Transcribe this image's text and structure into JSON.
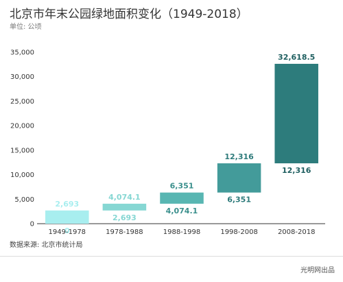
{
  "header": {
    "title": "北京市年末公园绿地面积变化（1949-2018）",
    "unit": "单位: 公顷"
  },
  "footer": {
    "source": "数据来源: 北京市统计局",
    "credit": "光明网出品"
  },
  "colors": {
    "bars": [
      "#a8eeef",
      "#86d7d3",
      "#58b6b2",
      "#439b9a",
      "#2d7c7c"
    ],
    "labels": [
      "#a8eeef",
      "#86d7d3",
      "#3a8f8c",
      "#2d7a7a",
      "#1f5f60"
    ],
    "axis": "#333333",
    "grid": "#cccccc"
  },
  "chart_data": {
    "type": "bar",
    "subtype": "floating-range",
    "title": "北京市年末公园绿地面积变化（1949-2018）",
    "ylabel": "单位: 公顷",
    "xlabel": "",
    "categories": [
      "1949-1978",
      "1978-1988",
      "1988-1998",
      "1998-2008",
      "2008-2018"
    ],
    "start_values": [
      0,
      2693,
      4074.1,
      6351,
      12316
    ],
    "end_values": [
      2693,
      4074.1,
      6351,
      12316,
      32618.5
    ],
    "start_labels": [
      "0",
      "2,693",
      "4,074.1",
      "6,351",
      "12,316"
    ],
    "end_labels": [
      "2,693",
      "4,074.1",
      "6,351",
      "12,316",
      "32,618.5"
    ],
    "ylim": [
      0,
      35000
    ],
    "yticks": [
      0,
      5000,
      10000,
      15000,
      20000,
      25000,
      30000,
      35000
    ],
    "ytick_labels": [
      "0",
      "5,000",
      "10,000",
      "15,000",
      "20,000",
      "25,000",
      "30,000",
      "35,000"
    ],
    "grid": false,
    "legend": "none"
  }
}
